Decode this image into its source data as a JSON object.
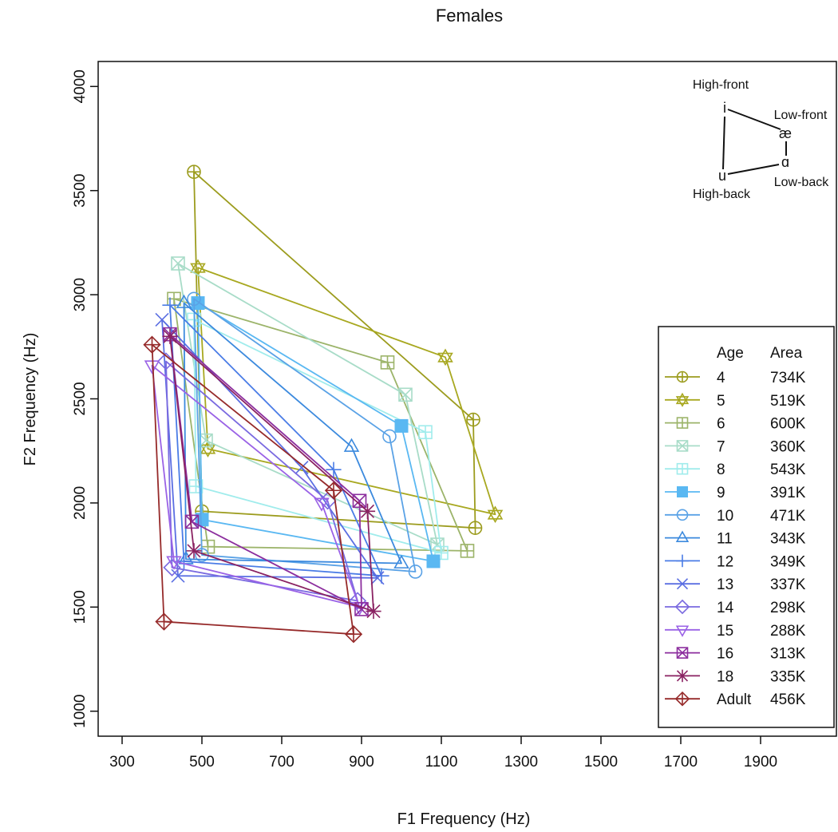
{
  "chart_data": {
    "type": "line",
    "title": "Females",
    "xlabel": "F1 Frequency (Hz)",
    "ylabel": "F2 Frequency (Hz)",
    "xlim": [
      240,
      2090
    ],
    "ylim": [
      880,
      4120
    ],
    "xticks": [
      300,
      500,
      700,
      900,
      1100,
      1300,
      1500,
      1700,
      1900
    ],
    "yticks": [
      1000,
      1500,
      2000,
      2500,
      3000,
      3500,
      4000
    ],
    "grid": false,
    "legend_position": "right",
    "legend_header": {
      "age": "Age",
      "area": "Area"
    },
    "series": [
      {
        "age": "4",
        "area": "734K",
        "color": "#9c9c1e",
        "marker": "circle-plus",
        "points": [
          [
            480,
            3590
          ],
          [
            1180,
            2400
          ],
          [
            1185,
            1880
          ],
          [
            500,
            1960
          ]
        ]
      },
      {
        "age": "5",
        "area": "519K",
        "color": "#a8a820",
        "marker": "star-of-david",
        "points": [
          [
            490,
            3130
          ],
          [
            1110,
            2700
          ],
          [
            1235,
            1945
          ],
          [
            515,
            2260
          ]
        ]
      },
      {
        "age": "6",
        "area": "600K",
        "color": "#9cb46a",
        "marker": "square-plus",
        "points": [
          [
            430,
            2980
          ],
          [
            965,
            2675
          ],
          [
            1165,
            1770
          ],
          [
            515,
            1790
          ]
        ]
      },
      {
        "age": "7",
        "area": "360K",
        "color": "#a8dcc8",
        "marker": "square-x",
        "points": [
          [
            440,
            3150
          ],
          [
            1010,
            2520
          ],
          [
            1090,
            1800
          ],
          [
            510,
            2300
          ]
        ]
      },
      {
        "age": "8",
        "area": "543K",
        "color": "#a0ecec",
        "marker": "square-plus",
        "points": [
          [
            480,
            2880
          ],
          [
            1060,
            2340
          ],
          [
            1100,
            1760
          ],
          [
            485,
            2080
          ]
        ]
      },
      {
        "age": "9",
        "area": "391K",
        "color": "#5ab8f2",
        "marker": "filled-square",
        "points": [
          [
            490,
            2960
          ],
          [
            1000,
            2370
          ],
          [
            1080,
            1720
          ],
          [
            500,
            1920
          ]
        ]
      },
      {
        "age": "10",
        "area": "471K",
        "color": "#5aa2e6",
        "marker": "circle",
        "points": [
          [
            480,
            2980
          ],
          [
            970,
            2320
          ],
          [
            1035,
            1670
          ],
          [
            500,
            1750
          ]
        ]
      },
      {
        "age": "11",
        "area": "343K",
        "color": "#3c8ade",
        "marker": "triangle",
        "points": [
          [
            455,
            2960
          ],
          [
            875,
            2270
          ],
          [
            1000,
            1710
          ],
          [
            460,
            1730
          ]
        ]
      },
      {
        "age": "12",
        "area": "349K",
        "color": "#4a7ce6",
        "marker": "plus",
        "points": [
          [
            420,
            2950
          ],
          [
            830,
            2160
          ],
          [
            950,
            1650
          ],
          [
            455,
            1720
          ]
        ]
      },
      {
        "age": "13",
        "area": "337K",
        "color": "#5a6ee2",
        "marker": "x",
        "points": [
          [
            400,
            2880
          ],
          [
            750,
            2170
          ],
          [
            940,
            1640
          ],
          [
            440,
            1650
          ]
        ]
      },
      {
        "age": "14",
        "area": "298K",
        "color": "#7a6ae0",
        "marker": "diamond",
        "points": [
          [
            410,
            2680
          ],
          [
            815,
            2010
          ],
          [
            890,
            1530
          ],
          [
            425,
            1690
          ]
        ]
      },
      {
        "age": "15",
        "area": "288K",
        "color": "#9a62e6",
        "marker": "triangle-down",
        "points": [
          [
            375,
            2660
          ],
          [
            800,
            2000
          ],
          [
            895,
            1500
          ],
          [
            430,
            1720
          ]
        ]
      },
      {
        "age": "16",
        "area": "313K",
        "color": "#8c2e9e",
        "marker": "square-x",
        "points": [
          [
            420,
            2810
          ],
          [
            895,
            2010
          ],
          [
            900,
            1490
          ],
          [
            475,
            1910
          ]
        ]
      },
      {
        "age": "18",
        "area": "335K",
        "color": "#8a2262",
        "marker": "asterisk",
        "points": [
          [
            420,
            2800
          ],
          [
            915,
            1960
          ],
          [
            930,
            1480
          ],
          [
            480,
            1770
          ]
        ]
      },
      {
        "age": "Adult",
        "area": "456K",
        "color": "#962a2a",
        "marker": "diamond-plus",
        "points": [
          [
            375,
            2760
          ],
          [
            830,
            2060
          ],
          [
            880,
            1370
          ],
          [
            405,
            1430
          ]
        ]
      }
    ],
    "inset": {
      "labels": {
        "high_front": "High-front",
        "low_front": "Low-front",
        "low_back": "Low-back",
        "high_back": "High-back"
      },
      "vowels": {
        "i": "i",
        "ae": "æ",
        "a": "ɑ",
        "u": "u"
      }
    }
  }
}
